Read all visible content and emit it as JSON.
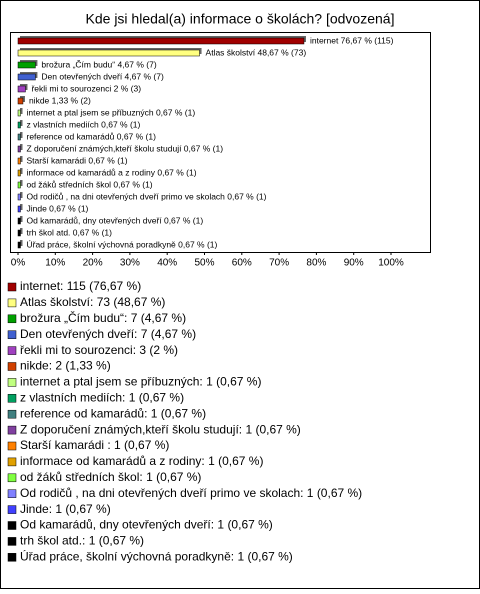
{
  "chart_data": {
    "type": "bar",
    "orientation": "horizontal",
    "title": "Kde jsi hledal(a) informace o školách? [odvozená]",
    "values": [
      76.67,
      48.67,
      4.67,
      4.67,
      2,
      1.33,
      0.67,
      0.67,
      0.67,
      0.67,
      0.67,
      0.67,
      0.67,
      0.67,
      0.67,
      0.67,
      0.67,
      0.67
    ],
    "value_labels": [
      "internet 76,67 % (115)",
      "Atlas školství 48,67 % (73)",
      "brožura „Čím budu“ 4,67 % (7)",
      "Den otevřených dveří 4,67 % (7)",
      "řekli mi to sourozenci 2 % (3)",
      "nikde 1,33 % (2)",
      "internet a ptal jsem se příbuzných 0,67 % (1)",
      "z vlastních mediích 0,67 % (1)",
      "reference od kamarádů 0,67 % (1)",
      "Z doporučení známých,kteří školu studují 0,67 % (1)",
      "Starší kamarádi  0,67 % (1)",
      "informace od kamarádů a z rodiny 0,67 % (1)",
      "od žáků středních škol 0,67 % (1)",
      "Od rodičů , na dni otevřených dveří primo ve skolach 0,67 % (1)",
      "Jinde 0,67 % (1)",
      "Od kamarádů, dny otevřených dveří 0,67 % (1)",
      "trh škol atd. 0,67 % (1)",
      "Úřad práce, školní výchovná poradkyně 0,67 % (1)"
    ],
    "legend_labels": [
      "internet: 115 (76,67 %)",
      "Atlas školství: 73 (48,67 %)",
      "brožura „Čím budu“: 7 (4,67 %)",
      "Den otevřených dveří: 7 (4,67 %)",
      "řekli mi to sourozenci: 3 (2 %)",
      "nikde: 2 (1,33 %)",
      "internet a ptal jsem se příbuzných: 1 (0,67 %)",
      "z vlastních mediích: 1 (0,67 %)",
      "reference od kamarádů: 1 (0,67 %)",
      "Z doporučení známých,kteří školu studují: 1 (0,67 %)",
      "Starší kamarádi : 1 (0,67 %)",
      "informace od kamarádů a z rodiny: 1 (0,67 %)",
      "od žáků středních škol: 1 (0,67 %)",
      "Od rodičů , na dni otevřených dveří primo ve skolach: 1 (0,67 %)",
      "Jinde: 1 (0,67 %)",
      "Od kamarádů, dny otevřených dveří: 1 (0,67 %)",
      "trh škol atd.: 1 (0,67 %)",
      "Úřad práce, školní výchovná poradkyně: 1 (0,67 %)"
    ],
    "colors": [
      "#a00000",
      "#ffff80",
      "#00a000",
      "#4060d0",
      "#a040c0",
      "#d04000",
      "#c0ff80",
      "#00a060",
      "#408080",
      "#8040a0",
      "#ff8000",
      "#e0a000",
      "#80ff40",
      "#8080ff",
      "#4040ff",
      "#000000",
      "#000000",
      "#000000"
    ],
    "xlim": [
      0,
      100
    ],
    "xticks": [
      {
        "value": 0,
        "label": "0%"
      },
      {
        "value": 10,
        "label": "10%"
      },
      {
        "value": 20,
        "label": "20%"
      },
      {
        "value": 30,
        "label": "30%"
      },
      {
        "value": 40,
        "label": "40%"
      },
      {
        "value": 50,
        "label": "50%"
      },
      {
        "value": 60,
        "label": "60%"
      },
      {
        "value": 70,
        "label": "70%"
      },
      {
        "value": 80,
        "label": "80%"
      },
      {
        "value": 90,
        "label": "90%"
      },
      {
        "value": 100,
        "label": "100%"
      }
    ]
  }
}
